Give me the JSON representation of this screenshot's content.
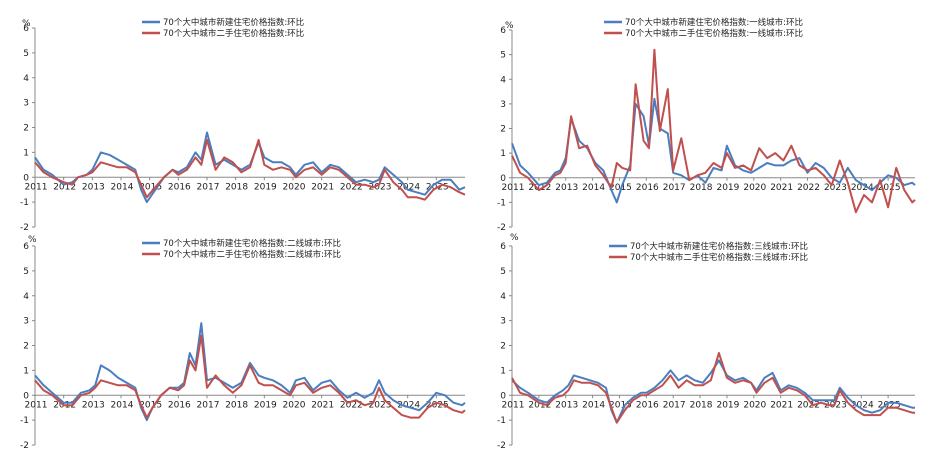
{
  "unit": "%",
  "colors": {
    "new": "#4a7ec0",
    "second": "#c0504d",
    "axis": "#888888"
  },
  "chart_data": [
    {
      "type": "line",
      "title": "",
      "ylabel": "%",
      "ylim": [
        -2,
        6
      ],
      "yticks": [
        -2,
        -1,
        0,
        1,
        2,
        3,
        4,
        5,
        6
      ],
      "xlim": [
        2011,
        2026
      ],
      "year_labels": [
        "2011",
        "2012",
        "2013",
        "2014",
        "2015",
        "2016",
        "2017",
        "2018",
        "2019",
        "2020",
        "2021",
        "2022",
        "2023",
        "2024",
        "2025"
      ],
      "series": [
        {
          "name": "70个大中城市新建住宅价格指数:环比",
          "x": [
            2011,
            2011.3,
            2011.6,
            2012,
            2012.3,
            2012.5,
            2012.8,
            2013,
            2013.3,
            2013.6,
            2013.9,
            2014.2,
            2014.5,
            2014.7,
            2014.9,
            2015.2,
            2015.5,
            2015.8,
            2016,
            2016.3,
            2016.6,
            2016.8,
            2017,
            2017.3,
            2017.6,
            2017.9,
            2018.2,
            2018.5,
            2018.8,
            2019,
            2019.3,
            2019.6,
            2019.9,
            2020.1,
            2020.4,
            2020.7,
            2021,
            2021.3,
            2021.6,
            2021.9,
            2022.2,
            2022.5,
            2022.8,
            2023,
            2023.2,
            2023.5,
            2023.8,
            2024,
            2024.3,
            2024.6,
            2024.9,
            2025.2,
            2025.5,
            2025.8,
            2026
          ],
          "values": [
            0.8,
            0.3,
            0.1,
            -0.3,
            -0.2,
            0,
            0.1,
            0.3,
            1,
            0.9,
            0.7,
            0.5,
            0.3,
            -0.5,
            -1,
            -0.5,
            0,
            0.3,
            0.2,
            0.4,
            1,
            0.7,
            1.8,
            0.5,
            0.7,
            0.5,
            0.3,
            0.5,
            1.4,
            0.8,
            0.6,
            0.6,
            0.4,
            0.1,
            0.5,
            0.6,
            0.2,
            0.5,
            0.4,
            0.1,
            -0.2,
            -0.1,
            -0.2,
            -0.1,
            0.4,
            0.1,
            -0.2,
            -0.5,
            -0.6,
            -0.7,
            -0.3,
            -0.1,
            -0.1,
            -0.5,
            -0.4
          ]
        },
        {
          "name": "70个大中城市二手住宅价格指数:环比",
          "x": [
            2011,
            2011.3,
            2011.6,
            2012,
            2012.3,
            2012.5,
            2012.8,
            2013,
            2013.3,
            2013.6,
            2013.9,
            2014.2,
            2014.5,
            2014.7,
            2014.9,
            2015.2,
            2015.5,
            2015.8,
            2016,
            2016.3,
            2016.6,
            2016.8,
            2017,
            2017.3,
            2017.6,
            2017.9,
            2018.2,
            2018.5,
            2018.8,
            2019,
            2019.3,
            2019.6,
            2019.9,
            2020.1,
            2020.4,
            2020.7,
            2021,
            2021.3,
            2021.6,
            2021.9,
            2022.2,
            2022.5,
            2022.8,
            2023,
            2023.2,
            2023.5,
            2023.8,
            2024,
            2024.3,
            2024.6,
            2024.9,
            2025.2,
            2025.5,
            2025.8,
            2026
          ],
          "values": [
            0.6,
            0.2,
            0,
            -0.2,
            -0.3,
            0,
            0.1,
            0.2,
            0.6,
            0.5,
            0.4,
            0.4,
            0.2,
            -0.3,
            -0.8,
            -0.4,
            0,
            0.3,
            0.1,
            0.3,
            0.8,
            0.5,
            1.5,
            0.3,
            0.8,
            0.6,
            0.2,
            0.4,
            1.5,
            0.5,
            0.3,
            0.4,
            0.3,
            0,
            0.3,
            0.4,
            0.1,
            0.4,
            0.3,
            0,
            -0.3,
            -0.3,
            -0.4,
            -0.3,
            0.3,
            -0.2,
            -0.5,
            -0.8,
            -0.8,
            -0.9,
            -0.5,
            -0.3,
            -0.4,
            -0.6,
            -0.7
          ]
        }
      ]
    },
    {
      "type": "line",
      "title": "",
      "ylabel": "%",
      "ylim": [
        -2,
        6
      ],
      "yticks": [
        -2,
        -1,
        0,
        1,
        2,
        3,
        4,
        5,
        6
      ],
      "xlim": [
        2011,
        2026
      ],
      "year_labels": [
        "2011",
        "2012",
        "2013",
        "2014",
        "2015",
        "2016",
        "2017",
        "2018",
        "2019",
        "2020",
        "2021",
        "2022",
        "2023",
        "2024",
        "2025"
      ],
      "series": [
        {
          "name": "70个大中城市新建住宅价格指数:一线城市:环比",
          "x": [
            2011,
            2011.3,
            2011.6,
            2012,
            2012.3,
            2012.6,
            2012.8,
            2013,
            2013.2,
            2013.5,
            2013.8,
            2014.1,
            2014.4,
            2014.7,
            2014.9,
            2015.1,
            2015.4,
            2015.6,
            2015.9,
            2016.1,
            2016.3,
            2016.5,
            2016.8,
            2017,
            2017.3,
            2017.6,
            2017.9,
            2018.2,
            2018.5,
            2018.8,
            2019,
            2019.3,
            2019.6,
            2019.9,
            2020.2,
            2020.5,
            2020.8,
            2021.1,
            2021.4,
            2021.7,
            2022,
            2022.3,
            2022.6,
            2022.9,
            2023.2,
            2023.5,
            2023.8,
            2024.1,
            2024.4,
            2024.7,
            2025,
            2025.3,
            2025.6,
            2025.9,
            2026
          ],
          "values": [
            1.4,
            0.5,
            0.2,
            -0.3,
            -0.2,
            0.2,
            0.3,
            0.8,
            2.4,
            1.5,
            1.2,
            0.6,
            0.3,
            -0.5,
            -1,
            -0.3,
            0.5,
            3,
            2.5,
            1.3,
            3.2,
            2,
            1.8,
            0.2,
            0.1,
            -0.1,
            0.1,
            -0.2,
            0.4,
            0.3,
            1.3,
            0.5,
            0.3,
            0.2,
            0.4,
            0.6,
            0.5,
            0.5,
            0.7,
            0.8,
            0.2,
            0.6,
            0.4,
            0,
            -0.2,
            0.4,
            -0.1,
            -0.3,
            -0.5,
            -0.2,
            0.1,
            0,
            -0.3,
            -0.2,
            -0.3
          ]
        },
        {
          "name": "70个大中城市二手住宅价格指数:一线城市:环比",
          "x": [
            2011,
            2011.3,
            2011.6,
            2012,
            2012.3,
            2012.6,
            2012.8,
            2013,
            2013.2,
            2013.5,
            2013.8,
            2014.1,
            2014.4,
            2014.7,
            2014.9,
            2015.1,
            2015.4,
            2015.6,
            2015.9,
            2016.1,
            2016.3,
            2016.5,
            2016.8,
            2017,
            2017.3,
            2017.6,
            2017.9,
            2018.2,
            2018.5,
            2018.8,
            2019,
            2019.3,
            2019.6,
            2019.9,
            2020.2,
            2020.5,
            2020.8,
            2021.1,
            2021.4,
            2021.7,
            2022,
            2022.3,
            2022.6,
            2022.9,
            2023.2,
            2023.5,
            2023.8,
            2024.1,
            2024.4,
            2024.7,
            2025,
            2025.3,
            2025.6,
            2025.9,
            2026
          ],
          "values": [
            0.9,
            0.2,
            0,
            -0.5,
            -0.3,
            0.1,
            0.2,
            0.6,
            2.5,
            1.2,
            1.3,
            0.5,
            0.1,
            -0.4,
            0.6,
            0.4,
            0.3,
            3.8,
            1.5,
            1.2,
            5.2,
            1.9,
            3.6,
            0.3,
            1.6,
            -0.1,
            0.1,
            0.2,
            0.6,
            0.4,
            1,
            0.4,
            0.5,
            0.3,
            1.2,
            0.8,
            1,
            0.7,
            1.3,
            0.5,
            0.3,
            0.4,
            0.1,
            -0.3,
            0.7,
            -0.2,
            -1.4,
            -0.7,
            -1,
            -0.1,
            -1.2,
            0.4,
            -0.5,
            -1,
            -0.9
          ]
        }
      ]
    },
    {
      "type": "line",
      "title": "",
      "ylabel": "%",
      "ylim": [
        -2,
        6
      ],
      "yticks": [
        -2,
        -1,
        0,
        1,
        2,
        3,
        4,
        5,
        6
      ],
      "xlim": [
        2011,
        2026
      ],
      "year_labels": [
        "2011",
        "2012",
        "2013",
        "2014",
        "2015",
        "2016",
        "2017",
        "2018",
        "2019",
        "2020",
        "2021",
        "2022",
        "2023",
        "2024",
        "2025"
      ],
      "series": [
        {
          "name": "70个大中城市新建住宅价格指数:二线城市:环比",
          "x": [
            2011,
            2011.3,
            2011.6,
            2012,
            2012.3,
            2012.6,
            2012.9,
            2013.1,
            2013.3,
            2013.6,
            2013.9,
            2014.2,
            2014.5,
            2014.7,
            2014.9,
            2015.1,
            2015.4,
            2015.7,
            2016,
            2016.2,
            2016.4,
            2016.6,
            2016.8,
            2017,
            2017.3,
            2017.6,
            2017.9,
            2018.2,
            2018.5,
            2018.8,
            2019,
            2019.3,
            2019.6,
            2019.9,
            2020.1,
            2020.4,
            2020.7,
            2021,
            2021.3,
            2021.6,
            2021.9,
            2022.2,
            2022.5,
            2022.8,
            2023,
            2023.2,
            2023.5,
            2023.8,
            2024.1,
            2024.4,
            2024.7,
            2025,
            2025.3,
            2025.6,
            2025.9,
            2026
          ],
          "values": [
            0.8,
            0.4,
            0.1,
            -0.3,
            -0.3,
            0.1,
            0.2,
            0.4,
            1.2,
            1,
            0.7,
            0.5,
            0.3,
            -0.5,
            -1,
            -0.5,
            0,
            0.3,
            0.3,
            0.5,
            1.7,
            1.2,
            2.9,
            0.6,
            0.7,
            0.5,
            0.3,
            0.5,
            1.3,
            0.8,
            0.7,
            0.6,
            0.4,
            0.1,
            0.6,
            0.7,
            0.2,
            0.5,
            0.6,
            0.2,
            -0.1,
            0.1,
            -0.1,
            0.1,
            0.6,
            0.1,
            -0.2,
            -0.4,
            -0.5,
            -0.6,
            -0.3,
            0.1,
            0,
            -0.3,
            -0.4,
            -0.3
          ]
        },
        {
          "name": "70个大中城市二手住宅价格指数:二线城市:环比",
          "x": [
            2011,
            2011.3,
            2011.6,
            2012,
            2012.3,
            2012.6,
            2012.9,
            2013.1,
            2013.3,
            2013.6,
            2013.9,
            2014.2,
            2014.5,
            2014.7,
            2014.9,
            2015.1,
            2015.4,
            2015.7,
            2016,
            2016.2,
            2016.4,
            2016.6,
            2016.8,
            2017,
            2017.3,
            2017.6,
            2017.9,
            2018.2,
            2018.5,
            2018.8,
            2019,
            2019.3,
            2019.6,
            2019.9,
            2020.1,
            2020.4,
            2020.7,
            2021,
            2021.3,
            2021.6,
            2021.9,
            2022.2,
            2022.5,
            2022.8,
            2023,
            2023.2,
            2023.5,
            2023.8,
            2024.1,
            2024.4,
            2024.7,
            2025,
            2025.3,
            2025.6,
            2025.9,
            2026
          ],
          "values": [
            0.6,
            0.2,
            0,
            -0.4,
            -0.4,
            0,
            0.1,
            0.3,
            0.6,
            0.5,
            0.4,
            0.4,
            0.2,
            -0.4,
            -0.9,
            -0.5,
            0,
            0.3,
            0.2,
            0.4,
            1.4,
            1,
            2.4,
            0.3,
            0.8,
            0.4,
            0.1,
            0.4,
            1.2,
            0.5,
            0.4,
            0.4,
            0.2,
            0,
            0.4,
            0.5,
            0.1,
            0.3,
            0.4,
            0.1,
            -0.3,
            -0.2,
            -0.4,
            -0.3,
            0.3,
            -0.2,
            -0.5,
            -0.8,
            -0.9,
            -0.9,
            -0.5,
            -0.3,
            -0.4,
            -0.6,
            -0.7,
            -0.6
          ]
        }
      ]
    },
    {
      "type": "line",
      "title": "",
      "ylabel": "%",
      "ylim": [
        -2,
        6
      ],
      "yticks": [
        -2,
        -1,
        0,
        1,
        2,
        3,
        4,
        5,
        6
      ],
      "xlim": [
        2011,
        2026
      ],
      "year_labels": [
        "2011",
        "2012",
        "2013",
        "2014",
        "2015",
        "2016",
        "2017",
        "2018",
        "2019",
        "2020",
        "2021",
        "2022",
        "2023",
        "2024",
        "2025"
      ],
      "series": [
        {
          "name": "70个大中城市新建住宅价格指数:三线城市:环比",
          "x": [
            2011,
            2011.3,
            2011.6,
            2012,
            2012.3,
            2012.6,
            2012.9,
            2013.1,
            2013.3,
            2013.6,
            2013.9,
            2014.2,
            2014.5,
            2014.7,
            2014.9,
            2015.2,
            2015.5,
            2015.8,
            2016,
            2016.3,
            2016.6,
            2016.9,
            2017.2,
            2017.5,
            2017.8,
            2018.1,
            2018.4,
            2018.7,
            2019,
            2019.3,
            2019.6,
            2019.9,
            2020.1,
            2020.4,
            2020.7,
            2021,
            2021.3,
            2021.6,
            2021.9,
            2022.2,
            2022.5,
            2022.8,
            2023,
            2023.2,
            2023.5,
            2023.8,
            2024.1,
            2024.4,
            2024.7,
            2025,
            2025.3,
            2025.6,
            2025.9,
            2026
          ],
          "values": [
            0.6,
            0.3,
            0.1,
            -0.2,
            -0.3,
            0,
            0.2,
            0.4,
            0.8,
            0.7,
            0.6,
            0.5,
            0.3,
            -0.6,
            -1.1,
            -0.4,
            -0.1,
            0.1,
            0.1,
            0.3,
            0.6,
            1,
            0.6,
            0.8,
            0.6,
            0.5,
            0.9,
            1.4,
            0.8,
            0.6,
            0.7,
            0.5,
            0.2,
            0.7,
            0.9,
            0.2,
            0.4,
            0.3,
            0.1,
            -0.2,
            -0.2,
            -0.2,
            -0.2,
            0.3,
            -0.1,
            -0.4,
            -0.6,
            -0.7,
            -0.6,
            -0.3,
            -0.3,
            -0.4,
            -0.5,
            -0.5
          ]
        },
        {
          "name": "70个大中城市二手住宅价格指数:三线城市:环比",
          "x": [
            2011,
            2011.3,
            2011.6,
            2012,
            2012.3,
            2012.6,
            2012.9,
            2013.1,
            2013.3,
            2013.6,
            2013.9,
            2014.2,
            2014.5,
            2014.7,
            2014.9,
            2015.2,
            2015.5,
            2015.8,
            2016,
            2016.3,
            2016.6,
            2016.9,
            2017.2,
            2017.5,
            2017.8,
            2018.1,
            2018.4,
            2018.7,
            2019,
            2019.3,
            2019.6,
            2019.9,
            2020.1,
            2020.4,
            2020.7,
            2021,
            2021.3,
            2021.6,
            2021.9,
            2022.2,
            2022.5,
            2022.8,
            2023,
            2023.2,
            2023.5,
            2023.8,
            2024.1,
            2024.4,
            2024.7,
            2025,
            2025.3,
            2025.6,
            2025.9,
            2026
          ],
          "values": [
            0.7,
            0.1,
            0,
            -0.3,
            -0.4,
            -0.1,
            0,
            0.2,
            0.6,
            0.5,
            0.5,
            0.4,
            0.1,
            -0.5,
            -1.1,
            -0.6,
            -0.2,
            0,
            0,
            0.2,
            0.4,
            0.8,
            0.3,
            0.6,
            0.4,
            0.4,
            0.6,
            1.7,
            0.7,
            0.5,
            0.6,
            0.5,
            0.1,
            0.5,
            0.7,
            0.1,
            0.3,
            0.2,
            0,
            -0.4,
            -0.3,
            -0.4,
            -0.4,
            0.2,
            -0.3,
            -0.6,
            -0.8,
            -0.8,
            -0.8,
            -0.5,
            -0.5,
            -0.6,
            -0.7,
            -0.7
          ]
        }
      ]
    }
  ]
}
